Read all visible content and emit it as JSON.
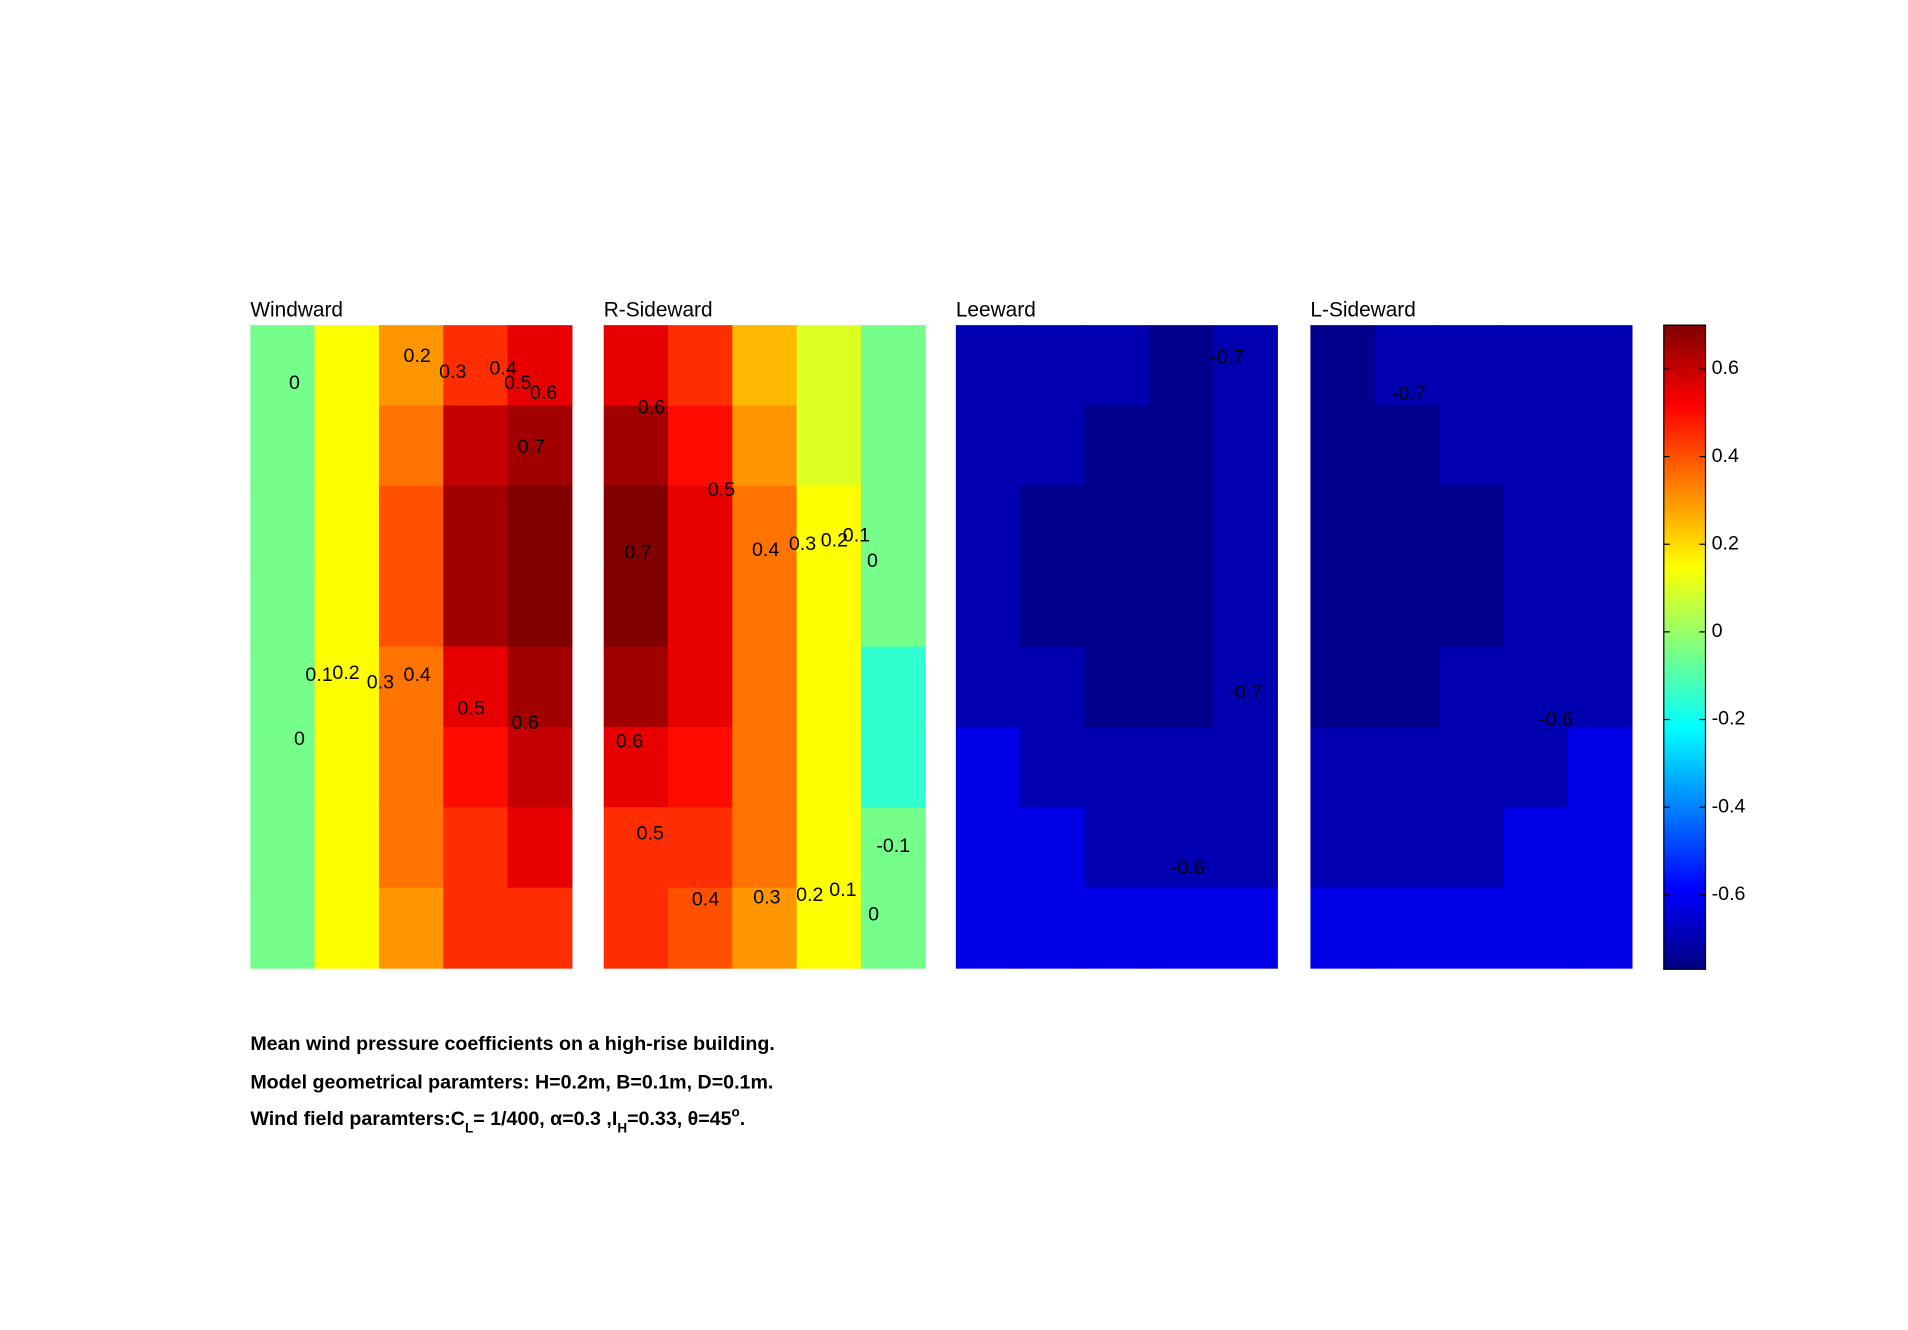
{
  "chart_data": {
    "type": "contour",
    "clim": [
      -0.77,
      0.7
    ],
    "cticks": [
      -0.6,
      -0.4,
      -0.2,
      0,
      0.2,
      0.4,
      0.6
    ],
    "panels": [
      {
        "title": "Windward",
        "z": [
          [
            -0.05,
            0.15,
            0.3,
            0.45,
            0.55
          ],
          [
            -0.05,
            0.15,
            0.35,
            0.6,
            0.65
          ],
          [
            -0.05,
            0.15,
            0.4,
            0.65,
            0.75
          ],
          [
            -0.05,
            0.15,
            0.4,
            0.65,
            0.75
          ],
          [
            -0.05,
            0.15,
            0.35,
            0.55,
            0.65
          ],
          [
            -0.05,
            0.15,
            0.35,
            0.5,
            0.6
          ],
          [
            -0.05,
            0.15,
            0.35,
            0.45,
            0.55
          ],
          [
            -0.05,
            0.15,
            0.3,
            0.45,
            0.45
          ]
        ],
        "contour_labels": [
          0,
          0.2,
          0.3,
          0.4,
          0.5,
          0.6,
          0.7,
          0.1,
          0.2,
          0.3,
          0.4,
          0.5,
          0.6,
          0
        ]
      },
      {
        "title": "R-Sideward",
        "z": [
          [
            0.55,
            0.45,
            0.25,
            0.1,
            -0.05
          ],
          [
            0.65,
            0.5,
            0.3,
            0.1,
            -0.05
          ],
          [
            0.75,
            0.55,
            0.35,
            0.15,
            -0.05
          ],
          [
            0.75,
            0.55,
            0.35,
            0.15,
            -0.05
          ],
          [
            0.65,
            0.55,
            0.35,
            0.15,
            -0.15
          ],
          [
            0.55,
            0.5,
            0.35,
            0.15,
            -0.15
          ],
          [
            0.45,
            0.45,
            0.35,
            0.15,
            -0.05
          ],
          [
            0.45,
            0.4,
            0.3,
            0.15,
            -0.05
          ]
        ],
        "contour_labels": [
          0.6,
          0.5,
          0.7,
          0.4,
          0.3,
          0.2,
          0.1,
          0,
          0.6,
          0.5,
          0.4,
          0.3,
          0.2,
          0.1,
          0,
          -0.1
        ]
      },
      {
        "title": "Leeward",
        "z": [
          [
            -0.7,
            -0.7,
            -0.7,
            -0.75,
            -0.7
          ],
          [
            -0.7,
            -0.7,
            -0.75,
            -0.75,
            -0.7
          ],
          [
            -0.7,
            -0.75,
            -0.75,
            -0.75,
            -0.7
          ],
          [
            -0.7,
            -0.75,
            -0.75,
            -0.75,
            -0.7
          ],
          [
            -0.7,
            -0.7,
            -0.75,
            -0.75,
            -0.7
          ],
          [
            -0.62,
            -0.7,
            -0.7,
            -0.7,
            -0.7
          ],
          [
            -0.62,
            -0.62,
            -0.7,
            -0.7,
            -0.7
          ],
          [
            -0.62,
            -0.62,
            -0.62,
            -0.62,
            -0.62
          ]
        ],
        "contour_labels": [
          -0.7,
          -0.7,
          -0.6
        ]
      },
      {
        "title": "L-Sideward",
        "z": [
          [
            -0.75,
            -0.7,
            -0.7,
            -0.7,
            -0.7
          ],
          [
            -0.75,
            -0.75,
            -0.7,
            -0.7,
            -0.7
          ],
          [
            -0.75,
            -0.75,
            -0.75,
            -0.7,
            -0.7
          ],
          [
            -0.75,
            -0.75,
            -0.75,
            -0.7,
            -0.7
          ],
          [
            -0.75,
            -0.75,
            -0.7,
            -0.7,
            -0.7
          ],
          [
            -0.7,
            -0.7,
            -0.7,
            -0.7,
            -0.62
          ],
          [
            -0.7,
            -0.7,
            -0.7,
            -0.62,
            -0.62
          ],
          [
            -0.62,
            -0.62,
            -0.62,
            -0.62,
            -0.62
          ]
        ],
        "contour_labels": [
          -0.7,
          -0.6
        ]
      }
    ],
    "caption": [
      "Mean wind pressure coefficients on a high-rise building.",
      "Model geometrical paramters: H=0.2m, B=0.1m, D=0.1m.",
      [
        "Wind field paramters:C",
        "L",
        "= 1/400, α=0.3 ,I",
        "H",
        "=0.33, θ=45",
        "o",
        "."
      ]
    ]
  }
}
